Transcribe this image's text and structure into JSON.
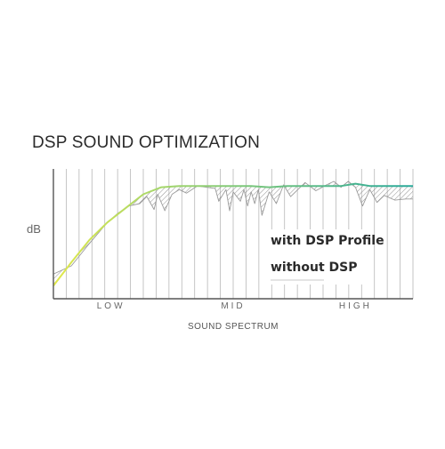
{
  "chart_data": {
    "type": "line",
    "title": "DSP SOUND OPTIMIZATION",
    "ylabel": "dB",
    "xlabel": "SOUND SPECTRUM",
    "x_ticks": [
      {
        "label": "LOW",
        "x": 0.16
      },
      {
        "label": "MID",
        "x": 0.5
      },
      {
        "label": "HIGH",
        "x": 0.84
      }
    ],
    "xlim": [
      0,
      1
    ],
    "ylim": [
      0,
      1
    ],
    "grid": {
      "vertical": true,
      "horizontal": false,
      "count": 28
    },
    "legend": {
      "position": "right"
    },
    "series": [
      {
        "name": "with DSP Profile",
        "style": "dsp",
        "color_start": "#e2e84a",
        "color_end": "#2aa99a",
        "points": [
          [
            0,
            0.08
          ],
          [
            0.05,
            0.28
          ],
          [
            0.1,
            0.47
          ],
          [
            0.15,
            0.62
          ],
          [
            0.2,
            0.74
          ],
          [
            0.25,
            0.86
          ],
          [
            0.3,
            0.92
          ],
          [
            0.35,
            0.93
          ],
          [
            0.45,
            0.93
          ],
          [
            0.5,
            0.93
          ],
          [
            0.55,
            0.93
          ],
          [
            0.6,
            0.92
          ],
          [
            0.65,
            0.93
          ],
          [
            0.7,
            0.93
          ],
          [
            0.75,
            0.93
          ],
          [
            0.8,
            0.93
          ],
          [
            0.84,
            0.95
          ],
          [
            0.88,
            0.93
          ],
          [
            0.95,
            0.93
          ],
          [
            1,
            0.93
          ]
        ]
      },
      {
        "name": "without DSP",
        "style": "raw",
        "color": "#9a9a9a",
        "points": [
          [
            0,
            0.18
          ],
          [
            0.05,
            0.25
          ],
          [
            0.1,
            0.44
          ],
          [
            0.15,
            0.62
          ],
          [
            0.18,
            0.7
          ],
          [
            0.21,
            0.76
          ],
          [
            0.24,
            0.78
          ],
          [
            0.26,
            0.84
          ],
          [
            0.28,
            0.73
          ],
          [
            0.29,
            0.86
          ],
          [
            0.31,
            0.72
          ],
          [
            0.33,
            0.86
          ],
          [
            0.35,
            0.9
          ],
          [
            0.37,
            0.87
          ],
          [
            0.4,
            0.93
          ],
          [
            0.45,
            0.91
          ],
          [
            0.46,
            0.8
          ],
          [
            0.48,
            0.9
          ],
          [
            0.49,
            0.72
          ],
          [
            0.5,
            0.88
          ],
          [
            0.52,
            0.8
          ],
          [
            0.53,
            0.9
          ],
          [
            0.54,
            0.76
          ],
          [
            0.55,
            0.88
          ],
          [
            0.56,
            0.78
          ],
          [
            0.57,
            0.9
          ],
          [
            0.58,
            0.68
          ],
          [
            0.6,
            0.88
          ],
          [
            0.62,
            0.78
          ],
          [
            0.64,
            0.94
          ],
          [
            0.66,
            0.84
          ],
          [
            0.7,
            0.96
          ],
          [
            0.73,
            0.89
          ],
          [
            0.76,
            0.94
          ],
          [
            0.78,
            0.97
          ],
          [
            0.8,
            0.92
          ],
          [
            0.82,
            0.97
          ],
          [
            0.84,
            0.92
          ],
          [
            0.86,
            0.76
          ],
          [
            0.88,
            0.9
          ],
          [
            0.9,
            0.79
          ],
          [
            0.92,
            0.85
          ],
          [
            0.95,
            0.81
          ],
          [
            0.98,
            0.82
          ],
          [
            1,
            0.82
          ]
        ]
      }
    ]
  }
}
